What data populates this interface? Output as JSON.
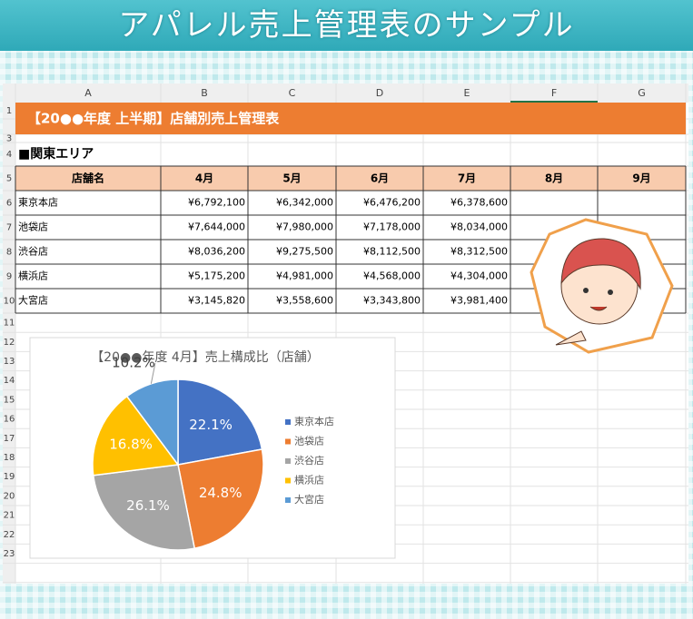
{
  "header": {
    "title": "アパレル売上管理表のサンプル"
  },
  "sheet": {
    "columns": [
      "A",
      "B",
      "C",
      "D",
      "E",
      "F",
      "G"
    ],
    "rows": [
      "1",
      "2",
      "3",
      "4",
      "5",
      "6",
      "7",
      "8",
      "9",
      "10",
      "11",
      "12",
      "13",
      "14",
      "15",
      "16",
      "17",
      "18",
      "19",
      "20",
      "21",
      "22",
      "23"
    ],
    "title": "【20●●年度 上半期】店舗別売上管理表",
    "section": "■関東エリア",
    "table": {
      "header": [
        "店舗名",
        "4月",
        "5月",
        "6月",
        "7月",
        "8月",
        "9月"
      ],
      "rows": [
        [
          "東京本店",
          "¥6,792,100",
          "¥6,342,000",
          "¥6,476,200",
          "¥6,378,600"
        ],
        [
          "池袋店",
          "¥7,644,000",
          "¥7,980,000",
          "¥7,178,000",
          "¥8,034,000"
        ],
        [
          "渋谷店",
          "¥8,036,200",
          "¥9,275,500",
          "¥8,112,500",
          "¥8,312,500"
        ],
        [
          "横浜店",
          "¥5,175,200",
          "¥4,981,000",
          "¥4,568,000",
          "¥4,304,000"
        ],
        [
          "大宮店",
          "¥3,145,820",
          "¥3,558,600",
          "¥3,343,800",
          "¥3,981,400"
        ]
      ]
    }
  },
  "chart_data": {
    "type": "pie",
    "title": "【20●●年度 4月】売上構成比（店舗）",
    "categories": [
      "東京本店",
      "池袋店",
      "渋谷店",
      "横浜店",
      "大宮店"
    ],
    "values": [
      22.1,
      24.8,
      26.1,
      16.8,
      10.2
    ],
    "value_labels": [
      "22.1%",
      "24.8%",
      "26.1%",
      "16.8%",
      "10.2%"
    ],
    "colors": [
      "#4472c4",
      "#ed7d31",
      "#a5a5a5",
      "#ffc000",
      "#5b9bd5"
    ],
    "legend": "right"
  }
}
